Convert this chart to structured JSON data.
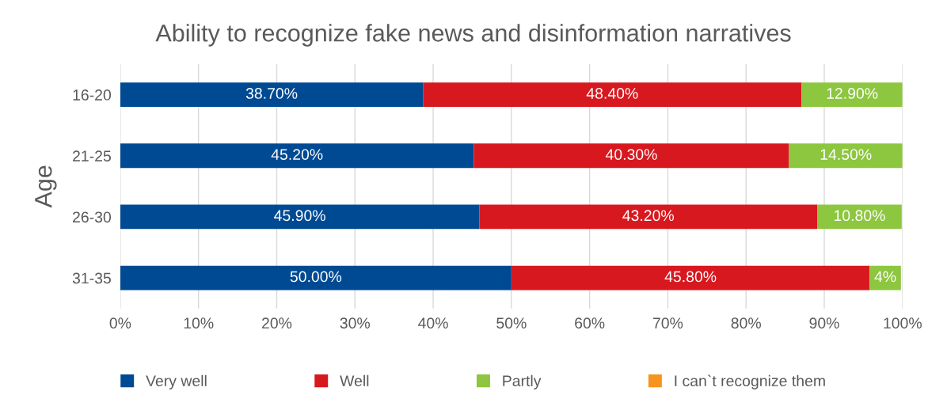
{
  "chart_data": {
    "type": "bar",
    "orientation": "horizontal",
    "stacked": true,
    "title": "Ability to recognize fake news and disinformation narratives",
    "ylabel": "Age",
    "categories": [
      "16-20",
      "21-25",
      "26-30",
      "31-35"
    ],
    "series": [
      {
        "name": "Very well",
        "color": "#004a93",
        "values": [
          38.7,
          45.2,
          45.9,
          50.0
        ],
        "value_labels": [
          "38.70%",
          "45.20%",
          "45.90%",
          "50.00%"
        ]
      },
      {
        "name": "Well",
        "color": "#d7191f",
        "values": [
          48.4,
          40.3,
          43.2,
          45.8
        ],
        "value_labels": [
          "48.40%",
          "40.30%",
          "43.20%",
          "45.80%"
        ]
      },
      {
        "name": "Partly",
        "color": "#8dc63f",
        "values": [
          12.9,
          14.5,
          10.8,
          4
        ],
        "value_labels": [
          "12.90%",
          "14.50%",
          "10.80%",
          "4%"
        ]
      },
      {
        "name": "I can`t recognize them",
        "color": "#f7941d",
        "values": [
          0,
          0,
          0,
          0
        ],
        "value_labels": [
          null,
          null,
          null,
          null
        ]
      }
    ],
    "xlim": [
      0,
      100
    ],
    "xticks": [
      {
        "value": 0,
        "label": "0%"
      },
      {
        "value": 10,
        "label": "10%"
      },
      {
        "value": 20,
        "label": "20%"
      },
      {
        "value": 30,
        "label": "30%"
      },
      {
        "value": 40,
        "label": "40%"
      },
      {
        "value": 50,
        "label": "50%"
      },
      {
        "value": 60,
        "label": "60%"
      },
      {
        "value": 70,
        "label": "70%"
      },
      {
        "value": 80,
        "label": "80%"
      },
      {
        "value": 90,
        "label": "90%"
      },
      {
        "value": 100,
        "label": "100%"
      }
    ],
    "grid": "x",
    "legend": "bottom"
  }
}
